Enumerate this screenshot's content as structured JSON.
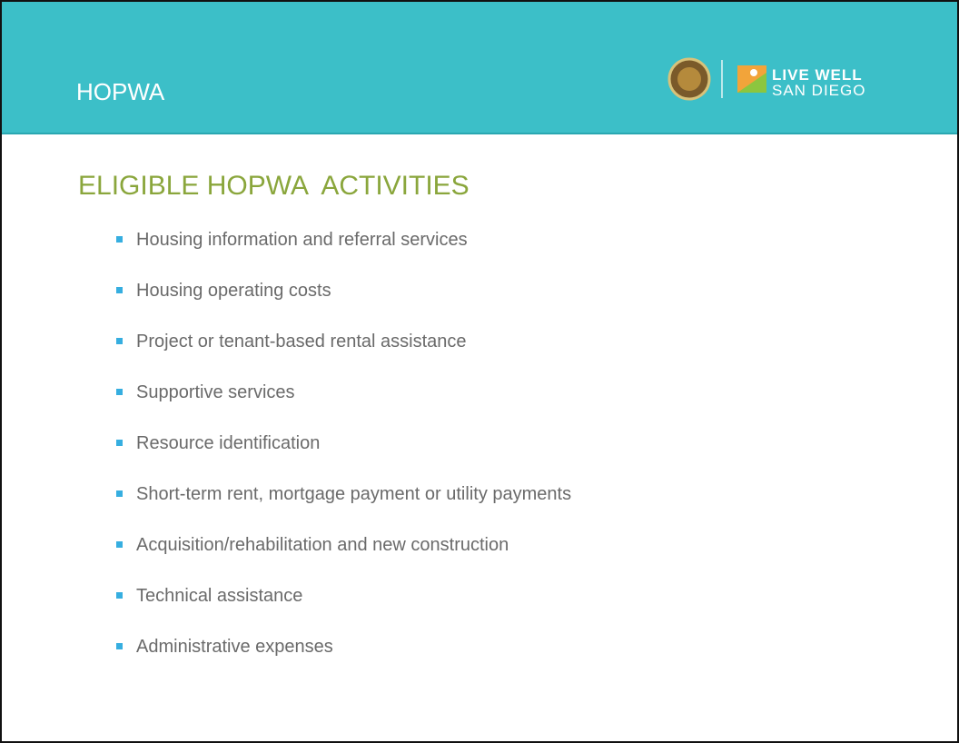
{
  "header": {
    "title": "HOPWA",
    "logo_text": [
      "LIVE WELL",
      "SAN DIEGO"
    ]
  },
  "heading": "ELIGIBLE HOPWA  ACTIVITIES",
  "items": [
    "Housing information and referral services",
    "Housing operating costs",
    "Project or tenant-based rental assistance",
    "Supportive services",
    "Resource identification",
    "Short-term rent, mortgage payment or utility payments",
    "Acquisition/rehabilitation and new construction",
    "Technical assistance",
    "Administrative expenses"
  ]
}
